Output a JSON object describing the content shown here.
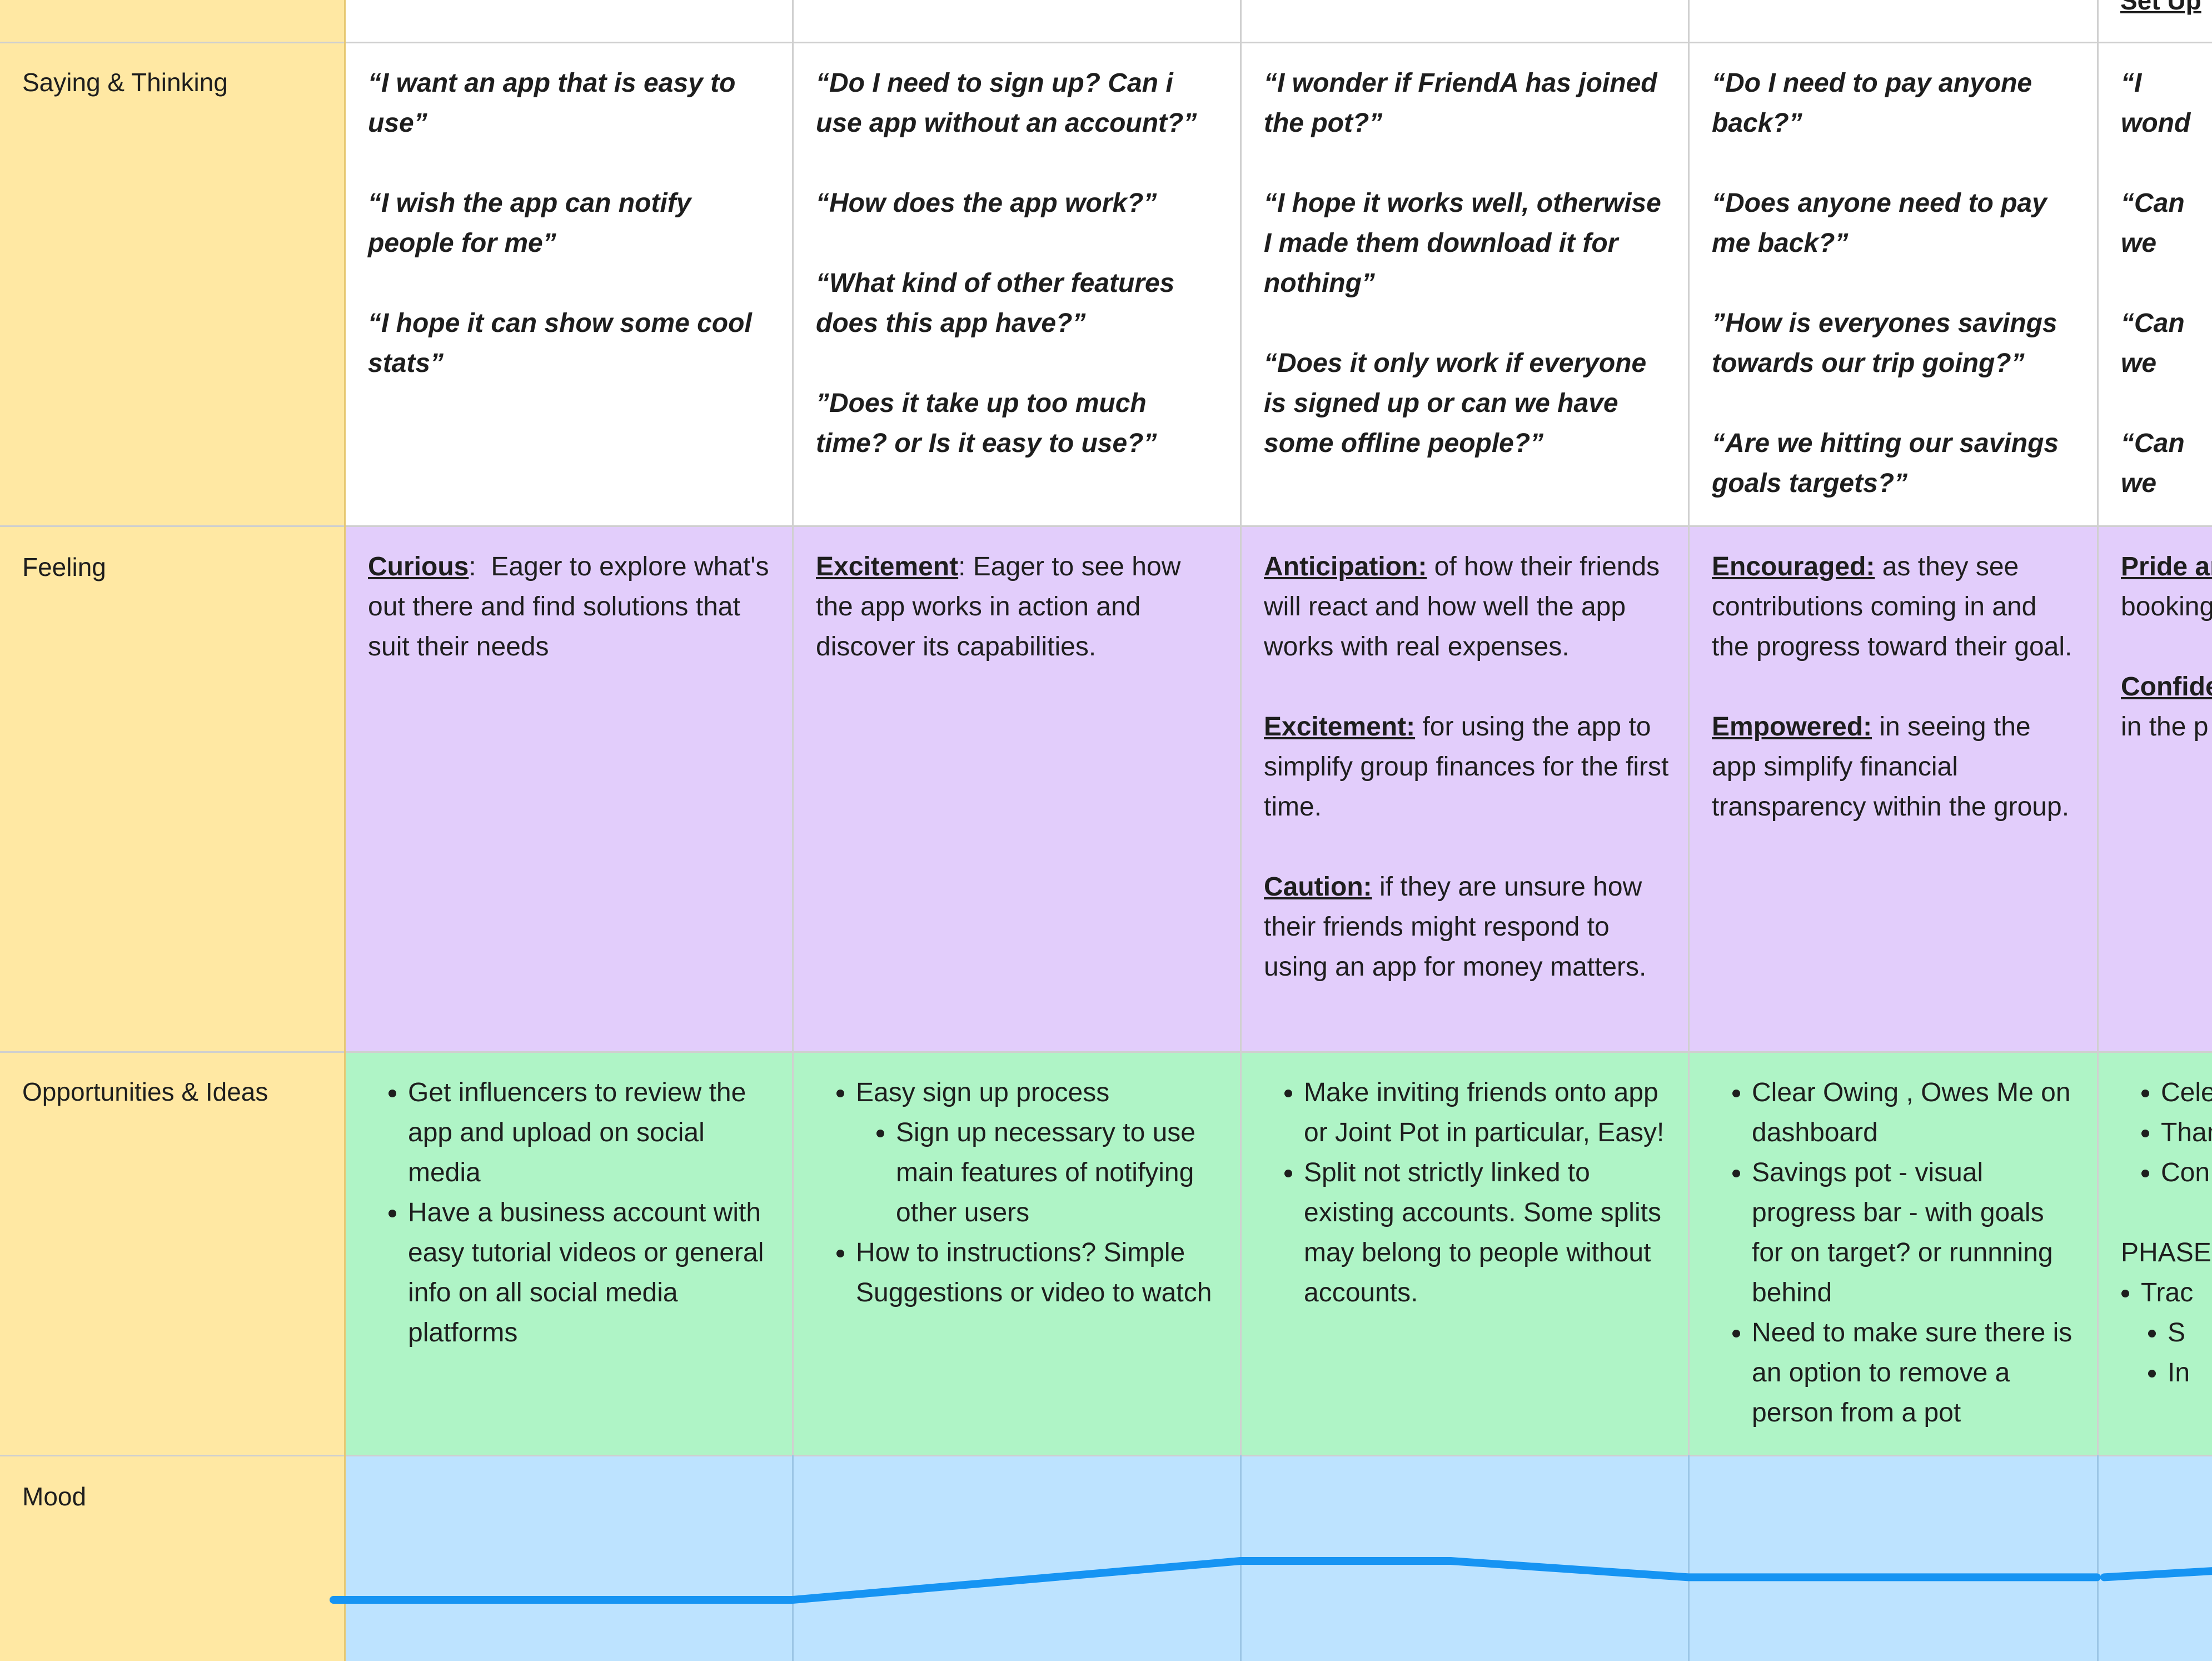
{
  "row_labels": {
    "saying": "Saying & Thinking",
    "feeling": "Feeling",
    "opportunities": "Opportunities & Ideas",
    "mood": "Mood"
  },
  "top_partial_label": "Set Up",
  "columns": [
    {
      "saying": [
        "“I want an app that is easy to use”",
        "“I wish the app can notify people for me”",
        "“I hope it can show some cool stats”"
      ],
      "feeling": [
        {
          "name": "Curious",
          "sep": ":  ",
          "text": "Eager to explore what's out there and find solutions that suit their needs"
        }
      ],
      "opportunities": {
        "items": [
          {
            "text": "Get influencers to review the app and upload on social media",
            "sub": []
          },
          {
            "text": "Have a business account with easy tutorial videos or general info on all social media platforms",
            "sub": []
          }
        ]
      }
    },
    {
      "saying": [
        "“Do I need to sign up? Can i use app without an account?”",
        "“How does the app work?”",
        "“What kind of other features does this app have?”",
        "”Does it take up too much time? or Is it easy to use?”"
      ],
      "feeling": [
        {
          "name": "Excitement",
          "sep": ": ",
          "text": "Eager to see how the app works in action and discover its capabilities."
        }
      ],
      "opportunities": {
        "items": [
          {
            "text": "Easy sign up process",
            "sub": [
              "Sign up necessary to use main features of notifying other users"
            ]
          },
          {
            "text": "How to instructions? Simple Suggestions or video to watch",
            "sub": []
          }
        ]
      }
    },
    {
      "saying": [
        "“I wonder if FriendA has joined the pot?”",
        "“I hope it works well, otherwise I made them download it for nothing”",
        "“Does it only work if everyone is signed up or can we have some offline people?”"
      ],
      "feeling": [
        {
          "name": "Anticipation:",
          "sep": " ",
          "text": "of how their friends will react and how well the app works with real expenses."
        },
        {
          "name": "Excitement:",
          "sep": " ",
          "text": "for using the app to simplify group finances for the first time."
        },
        {
          "name": "Caution:",
          "sep": " ",
          "text": "if they are unsure how their friends might respond to using an app for money matters."
        }
      ],
      "opportunities": {
        "items": [
          {
            "text": "Make inviting friends onto app or Joint Pot in particular, Easy!",
            "sub": []
          },
          {
            "text": "Split not strictly linked to existing accounts. Some splits may belong to people without accounts.",
            "sub": []
          }
        ]
      }
    },
    {
      "saying": [
        "“Do I need to pay anyone back?”",
        "“Does anyone need to pay me back?”",
        "”How is everyones savings towards our trip going?”",
        "“Are we hitting our savings goals targets?”"
      ],
      "feeling": [
        {
          "name": "Encouraged:",
          "sep": " ",
          "text": "as they see contributions coming in and the progress toward their goal."
        },
        {
          "name": "Empowered:",
          "sep": " ",
          "text": "in seeing the app simplify financial transparency within the group."
        }
      ],
      "opportunities": {
        "items": [
          {
            "text": "Clear Owing , Owes Me on dashboard",
            "sub": []
          },
          {
            "text": "Savings pot - visual progress bar - with goals for on target? or runnning behind",
            "sub": []
          },
          {
            "text": "Need to make sure there is an option to remove a person from a pot",
            "sub": []
          }
        ]
      }
    },
    {
      "saying": [
        "“I wond",
        "“Can we",
        "“Can we",
        "“Can we"
      ],
      "feeling": [
        {
          "name": "Pride ar",
          "sep": "",
          "text": "booking"
        },
        {
          "name": "Confide",
          "sep": "",
          "text": "in the p"
        }
      ],
      "opportunities": {
        "items": [
          {
            "text": "Cele",
            "sub": []
          },
          {
            "text": "Than",
            "sub": []
          },
          {
            "text": "Con",
            "sub": []
          }
        ],
        "after_label": "PHASE",
        "after_items": [
          {
            "text": "Trac",
            "sub": [
              "S",
              "In"
            ]
          }
        ]
      }
    }
  ],
  "mood": {
    "line_color": "#1694f3",
    "values": [
      0.0,
      0.0,
      1.0,
      1.0,
      0.58,
      0.58,
      0.58
    ],
    "partial_values": [
      0.58,
      0.75
    ]
  }
}
